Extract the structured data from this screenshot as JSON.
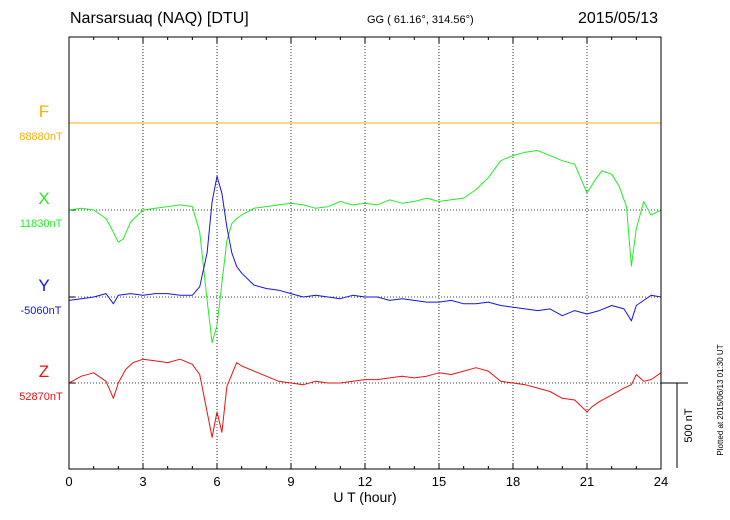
{
  "header": {
    "station": "Narsarsuaq (NAQ)  [DTU]",
    "coordinates": "GG ( 61.16°, 314.56°)",
    "date": "2015/05/13"
  },
  "footer": {
    "plotted": "Plotted at 2015/06/13 01:30 UT"
  },
  "chart_data": {
    "type": "line",
    "xlabel": "U T (hour)",
    "xlim": [
      0,
      24
    ],
    "xticks": [
      0,
      3,
      6,
      9,
      12,
      15,
      18,
      21,
      24
    ],
    "xtick_labels": [
      "0",
      "3",
      "6",
      "9",
      "12",
      "15",
      "18",
      "21",
      "24"
    ],
    "scale_bar": {
      "label": "500 nT",
      "value_nT": 500
    },
    "grid": true,
    "legend": "left",
    "series": [
      {
        "name": "F",
        "baseline_label": "88880nT",
        "baseline_nT": 88880,
        "color": "#f5b000",
        "x": [
          0,
          24
        ],
        "y": [
          88880,
          88880
        ]
      },
      {
        "name": "X",
        "baseline_label": "11830nT",
        "baseline_nT": 11830,
        "color": "#22ee22",
        "x": [
          0,
          0.5,
          1.0,
          1.5,
          1.8,
          2.0,
          2.2,
          2.5,
          3.0,
          3.5,
          4.0,
          4.5,
          5.0,
          5.3,
          5.6,
          5.8,
          6.0,
          6.2,
          6.4,
          6.6,
          6.8,
          7.0,
          7.5,
          8.0,
          8.5,
          9.0,
          9.5,
          10.0,
          10.5,
          11.0,
          11.5,
          12.0,
          12.5,
          13.0,
          13.5,
          14.0,
          14.5,
          15.0,
          15.5,
          16.0,
          16.5,
          17.0,
          17.5,
          18.0,
          18.5,
          19.0,
          19.5,
          20.0,
          20.5,
          21.0,
          21.3,
          21.6,
          22.0,
          22.3,
          22.6,
          22.8,
          23.0,
          23.3,
          23.6,
          24.0
        ],
        "y": [
          11830,
          11840,
          11830,
          11780,
          11700,
          11640,
          11660,
          11760,
          11830,
          11840,
          11850,
          11860,
          11850,
          11700,
          11300,
          11050,
          11150,
          11400,
          11650,
          11750,
          11780,
          11800,
          11840,
          11850,
          11860,
          11870,
          11860,
          11840,
          11850,
          11880,
          11860,
          11870,
          11860,
          11890,
          11870,
          11880,
          11900,
          11880,
          11890,
          11900,
          11950,
          12020,
          12120,
          12150,
          12170,
          12180,
          12150,
          12120,
          12100,
          11930,
          12000,
          12060,
          12040,
          11970,
          11850,
          11500,
          11720,
          11880,
          11800,
          11830
        ]
      },
      {
        "name": "Y",
        "baseline_label": "-5060nT",
        "baseline_nT": -5060,
        "color": "#1515dd",
        "x": [
          0,
          0.5,
          1.0,
          1.5,
          1.8,
          2.0,
          2.5,
          3.0,
          3.5,
          4.0,
          4.5,
          5.0,
          5.3,
          5.6,
          5.8,
          6.0,
          6.2,
          6.4,
          6.6,
          6.8,
          7.0,
          7.5,
          8.0,
          8.5,
          9.0,
          9.5,
          10.0,
          10.5,
          11.0,
          11.5,
          12.0,
          12.5,
          13.0,
          13.5,
          14.0,
          14.5,
          15.0,
          15.5,
          16.0,
          16.5,
          17.0,
          17.5,
          18.0,
          18.5,
          19.0,
          19.5,
          20.0,
          20.5,
          21.0,
          21.5,
          22.0,
          22.5,
          22.8,
          23.0,
          23.3,
          23.6,
          24.0
        ],
        "y": [
          -5080,
          -5070,
          -5060,
          -5040,
          -5100,
          -5050,
          -5040,
          -5050,
          -5040,
          -5040,
          -5050,
          -5050,
          -5000,
          -4800,
          -4500,
          -4350,
          -4450,
          -4650,
          -4800,
          -4880,
          -4920,
          -4990,
          -5010,
          -5020,
          -5040,
          -5060,
          -5050,
          -5060,
          -5070,
          -5050,
          -5060,
          -5060,
          -5080,
          -5070,
          -5080,
          -5090,
          -5090,
          -5080,
          -5100,
          -5100,
          -5090,
          -5110,
          -5120,
          -5130,
          -5140,
          -5130,
          -5170,
          -5140,
          -5160,
          -5140,
          -5110,
          -5130,
          -5200,
          -5110,
          -5080,
          -5050,
          -5060
        ]
      },
      {
        "name": "Z",
        "baseline_label": "52870nT",
        "baseline_nT": 52870,
        "color": "#ee1111",
        "x": [
          0,
          0.5,
          1.0,
          1.5,
          1.8,
          2.0,
          2.3,
          2.6,
          3.0,
          3.5,
          4.0,
          4.5,
          5.0,
          5.3,
          5.6,
          5.8,
          6.0,
          6.2,
          6.4,
          6.6,
          6.8,
          7.0,
          7.5,
          8.0,
          8.5,
          9.0,
          9.5,
          10.0,
          10.5,
          11.0,
          11.5,
          12.0,
          12.5,
          13.0,
          13.5,
          14.0,
          14.5,
          15.0,
          15.5,
          16.0,
          16.5,
          17.0,
          17.5,
          18.0,
          18.5,
          19.0,
          19.5,
          20.0,
          20.5,
          21.0,
          21.2,
          21.5,
          22.0,
          22.5,
          22.8,
          23.0,
          23.3,
          23.6,
          24.0
        ],
        "y": [
          52870,
          52910,
          52930,
          52880,
          52780,
          52870,
          52950,
          52990,
          53010,
          53000,
          52990,
          53010,
          52980,
          52920,
          52700,
          52550,
          52700,
          52580,
          52850,
          52920,
          52990,
          52970,
          52940,
          52910,
          52880,
          52870,
          52860,
          52880,
          52870,
          52870,
          52880,
          52890,
          52890,
          52900,
          52910,
          52900,
          52910,
          52930,
          52920,
          52940,
          52960,
          52940,
          52880,
          52870,
          52860,
          52840,
          52820,
          52780,
          52770,
          52700,
          52730,
          52760,
          52800,
          52840,
          52860,
          52920,
          52880,
          52890,
          52930
        ]
      }
    ]
  }
}
